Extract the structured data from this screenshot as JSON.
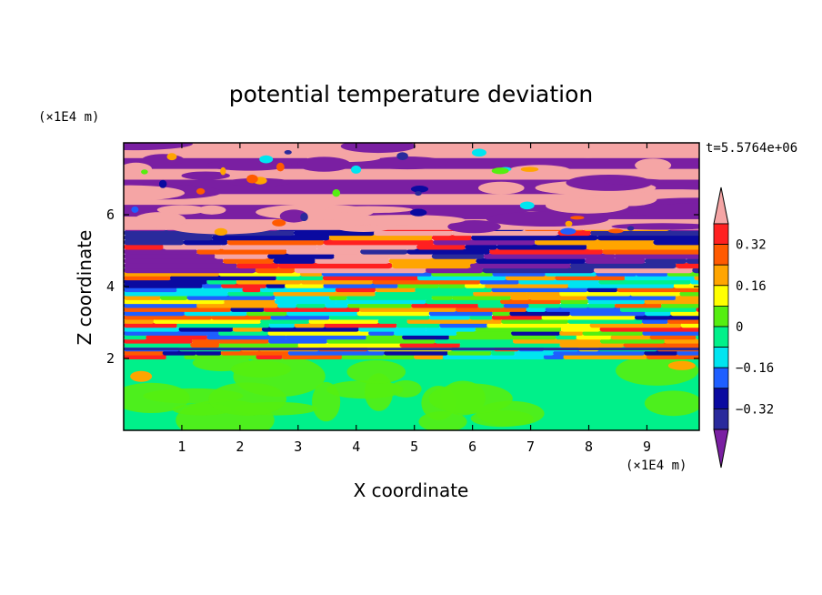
{
  "chart_data": {
    "type": "heatmap",
    "title": "potential temperature deviation",
    "xlabel": "X coordinate",
    "ylabel": "Z coordinate",
    "x_unit": "(×1E4 m)",
    "y_unit": "(×1E4 m)",
    "time_label": "t=5.5764e+06",
    "xlim": [
      0,
      9.9
    ],
    "ylim": [
      0,
      8
    ],
    "x_ticks": [
      "1",
      "2",
      "3",
      "4",
      "5",
      "6",
      "7",
      "8",
      "9"
    ],
    "y_ticks": [
      "2",
      "4",
      "6"
    ],
    "colorbar": {
      "levels": [
        -0.48,
        -0.4,
        -0.32,
        -0.24,
        -0.16,
        -0.08,
        0,
        0.08,
        0.16,
        0.24,
        0.32,
        0.4
      ],
      "colors": [
        "#7a1fa2",
        "#2a2a9c",
        "#0a0aa0",
        "#1e5fff",
        "#00e5f0",
        "#00f08a",
        "#55ee11",
        "#ffff00",
        "#ffa500",
        "#ff5a00",
        "#ff2020",
        "#f5a5a5"
      ],
      "labels": [
        "0.32",
        "0.16",
        "0",
        "−0.16",
        "−0.32"
      ]
    },
    "layers": [
      {
        "z": [
          0,
          2.0
        ],
        "value": 0.02,
        "description_color": "green lower layer"
      },
      {
        "z": [
          2.0,
          4.4
        ],
        "value": 0.0,
        "description_color": "mixed turbulent layer"
      },
      {
        "z": [
          4.4,
          5.6
        ],
        "value": 0.25,
        "description_color": "warm/cold alternating bands"
      },
      {
        "z": [
          5.6,
          8.0
        ],
        "value": 0.4,
        "description_color": "pink/purple stratified bands"
      }
    ]
  }
}
